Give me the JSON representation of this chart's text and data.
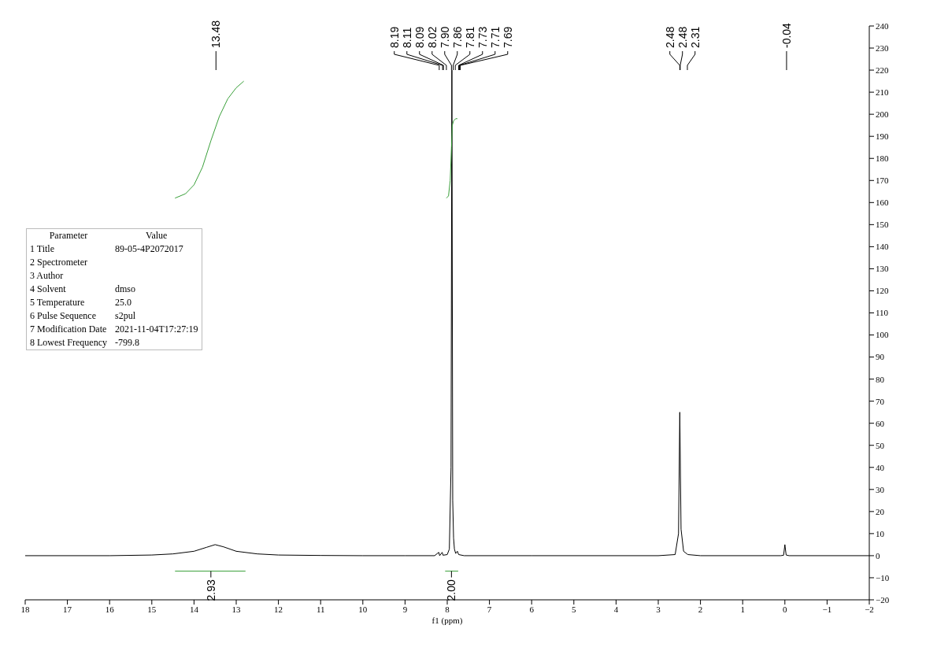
{
  "chart_data": {
    "type": "line",
    "xlabel": "f1 (ppm)",
    "xlim": [
      18,
      -2
    ],
    "xticks": [
      18,
      17,
      16,
      15,
      14,
      13,
      12,
      11,
      10,
      9,
      8,
      7,
      6,
      5,
      4,
      3,
      2,
      1,
      0,
      {
        "value": -1,
        "label": "−1"
      },
      {
        "value": -2,
        "label": "−2"
      }
    ],
    "ylim": [
      -20,
      240
    ],
    "yticks": [
      {
        "value": -20,
        "label": "−20"
      },
      {
        "value": -10,
        "label": "−10"
      },
      0,
      10,
      20,
      30,
      40,
      50,
      60,
      70,
      80,
      90,
      100,
      110,
      120,
      130,
      140,
      150,
      160,
      170,
      180,
      190,
      200,
      210,
      220,
      230,
      240
    ],
    "marker": "none",
    "line_style": "solid",
    "series": [
      {
        "color": "#000000",
        "x": [
          18,
          16,
          15,
          14.5,
          14,
          13.7,
          13.5,
          13.3,
          13,
          12.5,
          12,
          11,
          10,
          9,
          8.3,
          8.2,
          8.18,
          8.12,
          8.1,
          8.0,
          7.95,
          7.91,
          7.89,
          7.87,
          7.85,
          7.83,
          7.8,
          7.76,
          7.73,
          7.6,
          6,
          3,
          2.6,
          2.52,
          2.49,
          2.46,
          2.4,
          2.3,
          2,
          0.1,
          0.03,
          0.0,
          -0.03,
          -0.1,
          -2
        ],
        "values": [
          0,
          0,
          0.3,
          0.8,
          2,
          3.8,
          5,
          4,
          2,
          0.8,
          0.3,
          0.1,
          0,
          0,
          0,
          1.5,
          0,
          1.5,
          0.2,
          0.5,
          3,
          40,
          220,
          25,
          8,
          3,
          1,
          2,
          0.5,
          0,
          0,
          0,
          0.5,
          10,
          65,
          12,
          2,
          0.5,
          0,
          0,
          0.2,
          5,
          0.3,
          0,
          0
        ]
      },
      {
        "color": "#3aa03a",
        "x": [
          14.45,
          14.2,
          14.0,
          13.8,
          13.6,
          13.4,
          13.2,
          13.0,
          12.82
        ],
        "values": [
          162,
          164,
          168,
          176,
          188,
          199,
          207,
          212,
          215
        ]
      },
      {
        "color": "#3aa03a",
        "x": [
          8.02,
          7.97,
          7.93,
          7.9,
          7.88,
          7.85,
          7.8,
          7.76
        ],
        "values": [
          162,
          163,
          170,
          185,
          195,
          197,
          198,
          198
        ]
      },
      {
        "color": "#3aa03a",
        "x": [
          14.45,
          12.78
        ],
        "values": [
          -7,
          -7
        ]
      },
      {
        "color": "#3aa03a",
        "x": [
          8.05,
          7.74
        ],
        "values": [
          -7,
          -7
        ]
      }
    ],
    "annotations": [
      {
        "text": "2.93",
        "x": 13.6,
        "y": -7
      },
      {
        "text": "2.00",
        "x": 7.9,
        "y": -7
      },
      {
        "text": "13.48",
        "x": 13.48
      },
      {
        "text": "8.19",
        "x": 8.19
      },
      {
        "text": "8.11",
        "x": 8.11
      },
      {
        "text": "8.09",
        "x": 8.09
      },
      {
        "text": "8.02",
        "x": 8.02
      },
      {
        "text": "7.90",
        "x": 7.9
      },
      {
        "text": "7.86",
        "x": 7.86
      },
      {
        "text": "7.81",
        "x": 7.81
      },
      {
        "text": "7.73",
        "x": 7.73
      },
      {
        "text": "7.71",
        "x": 7.71
      },
      {
        "text": "7.69",
        "x": 7.69
      },
      {
        "text": "2.48",
        "x": 2.49
      },
      {
        "text": "2.48",
        "x": 2.48
      },
      {
        "text": "2.31",
        "x": 2.31
      },
      {
        "text": "-0.04",
        "x": -0.04
      },
      "Parameter\tValue",
      "1 Title\t89-05-4P2072017",
      "2 Spectrometer\t",
      "3 Author\t",
      "4 Solvent\tdmso",
      "5 Temperature\t25.0",
      "6 Pulse Sequence\ts2pul",
      "7 Modification Date\t2021-11-04T17:27:19",
      "8 Lowest Frequency\t-799.8"
    ]
  }
}
